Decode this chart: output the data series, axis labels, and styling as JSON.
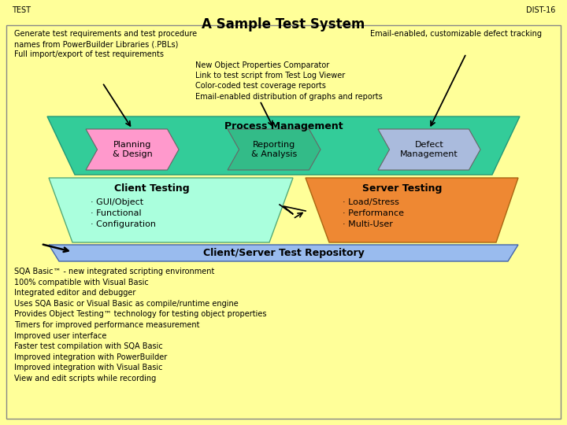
{
  "title": "A Sample Test System",
  "top_left_label": "TEST",
  "top_right_label": "DIST-16",
  "bg_color": "#FFFF99",
  "border_color": "#888888",
  "annotation_left": "Generate test requirements and test procedure\nnames from PowerBuilder Libraries (.PBLs)\nFull import/export of test requirements",
  "annotation_right": "Email-enabled, customizable defect tracking",
  "annotation_center": "New Object Properties Comparator\nLink to test script from Test Log Viewer\nColor-coded test coverage reports\nEmail-enabled distribution of graphs and reports",
  "process_mgmt_color": "#33CC99",
  "process_mgmt_text": "Process Management",
  "arrow1_color": "#FF99CC",
  "arrow1_text": "Planning\n& Design",
  "arrow2_color": "#33BB88",
  "arrow2_text": "Reporting\n& Analysis",
  "arrow3_color": "#AABBDD",
  "arrow3_text": "Defect\nManagement",
  "client_trap_color": "#AAFFDD",
  "client_title": "Client Testing",
  "client_bullets": "· GUI/Object\n· Functional\n· Configuration",
  "server_trap_color": "#EE8833",
  "server_title": "Server Testing",
  "server_bullets": "· Load/Stress\n· Performance\n· Multi-User",
  "repo_color": "#99BBEE",
  "repo_text": "Client/Server Test Repository",
  "bottom_text": "SQA Basic™ - new integrated scripting environment\n100% compatible with Visual Basic\nIntegrated editor and debugger\nUses SQA Basic or Visual Basic as compile/runtime engine\nProvides Object Testing™ technology for testing object properties\nTimers for improved performance measurement\nImproved user interface\nFaster test compilation with SQA Basic\nImproved integration with PowerBuilder\nImproved integration with Visual Basic\nView and edit scripts while recording"
}
